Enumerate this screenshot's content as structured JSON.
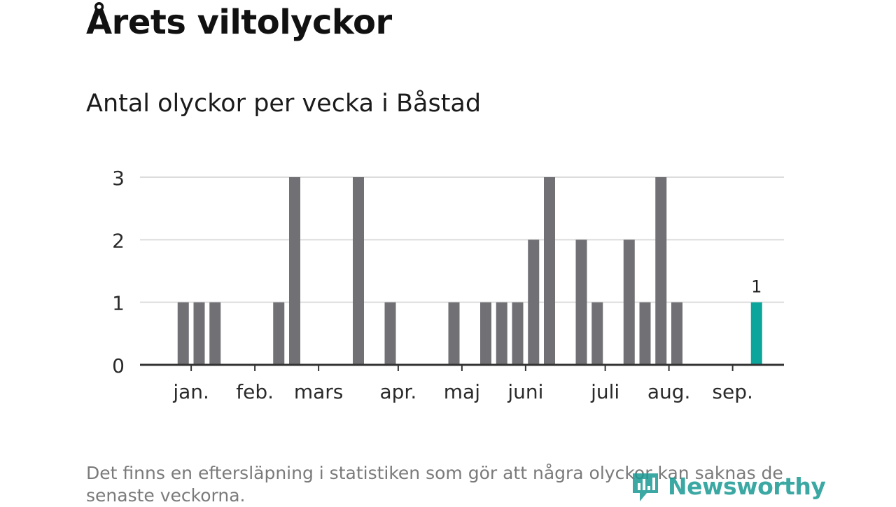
{
  "title": "Årets viltolyckor",
  "subtitle": "Antal olyckor per vecka i Båstad",
  "footnote": "Det finns en eftersläpning i statistiken som gör att några olyckor kan saknas de senaste veckorna.",
  "logo_text": "Newsworthy",
  "colors": {
    "bar": "#717075",
    "highlight": "#0ba59c",
    "grid": "#dcdcdc",
    "axis": "#333333"
  },
  "chart_data": {
    "type": "bar",
    "x": [
      "2024-W01",
      "2024-W02",
      "2024-W03",
      "2024-W04",
      "2024-W05",
      "2024-W06",
      "2024-W07",
      "2024-W08",
      "2024-W09",
      "2024-W10",
      "2024-W11",
      "2024-W12",
      "2024-W13",
      "2024-W14",
      "2024-W15",
      "2024-W16",
      "2024-W17",
      "2024-W18",
      "2024-W19",
      "2024-W20",
      "2024-W21",
      "2024-W22",
      "2024-W23",
      "2024-W24",
      "2024-W25",
      "2024-W26",
      "2024-W27",
      "2024-W28",
      "2024-W29",
      "2024-W30",
      "2024-W31",
      "2024-W32",
      "2024-W33",
      "2024-W34",
      "2024-W35",
      "2024-W36",
      "2024-W37",
      "2024-W38"
    ],
    "values": [
      0,
      1,
      1,
      1,
      0,
      0,
      0,
      1,
      3,
      0,
      0,
      0,
      3,
      0,
      1,
      0,
      0,
      0,
      1,
      0,
      1,
      1,
      1,
      2,
      3,
      0,
      2,
      1,
      0,
      2,
      1,
      3,
      1,
      0,
      0,
      0,
      0,
      1
    ],
    "highlight_index": 37,
    "highlight_label": "1",
    "yticks": [
      0,
      1,
      2,
      3
    ],
    "ylim": [
      0,
      3
    ],
    "month_ticks": [
      {
        "label": "jan.",
        "pos": 1.5
      },
      {
        "label": "feb.",
        "pos": 5.5
      },
      {
        "label": "mars",
        "pos": 9.5
      },
      {
        "label": "apr.",
        "pos": 14.5
      },
      {
        "label": "maj",
        "pos": 18.5
      },
      {
        "label": "juni",
        "pos": 22.5
      },
      {
        "label": "juli",
        "pos": 27.5
      },
      {
        "label": "aug.",
        "pos": 31.5
      },
      {
        "label": "sep.",
        "pos": 35.5
      }
    ],
    "grid": true
  }
}
